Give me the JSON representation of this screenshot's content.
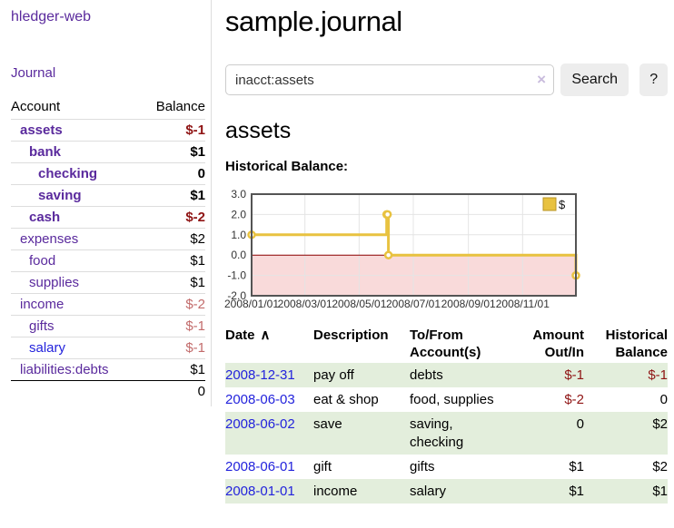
{
  "app_title": "hledger-web",
  "nav": {
    "journal": "Journal"
  },
  "sidebar": {
    "col_account": "Account",
    "col_balance": "Balance",
    "accounts": [
      {
        "name": "assets",
        "balance": "$-1",
        "level": 1,
        "bold": true,
        "balance_style": "neg",
        "link_style": "purple"
      },
      {
        "name": "bank",
        "balance": "$1",
        "level": 2,
        "bold": true,
        "balance_style": "pos",
        "link_style": "purple"
      },
      {
        "name": "checking",
        "balance": "0",
        "level": 3,
        "bold": true,
        "balance_style": "pos",
        "link_style": "purple"
      },
      {
        "name": "saving",
        "balance": "$1",
        "level": 3,
        "bold": true,
        "balance_style": "pos",
        "link_style": "purple"
      },
      {
        "name": "cash",
        "balance": "$-2",
        "level": 2,
        "bold": true,
        "balance_style": "neg",
        "link_style": "purple"
      },
      {
        "name": "expenses",
        "balance": "$2",
        "level": 1,
        "bold": false,
        "balance_style": "pos",
        "link_style": "purple"
      },
      {
        "name": "food",
        "balance": "$1",
        "level": 2,
        "bold": false,
        "balance_style": "pos",
        "link_style": "purple"
      },
      {
        "name": "supplies",
        "balance": "$1",
        "level": 2,
        "bold": false,
        "balance_style": "pos",
        "link_style": "purple"
      },
      {
        "name": "income",
        "balance": "$-2",
        "level": 1,
        "bold": false,
        "balance_style": "neg-muted",
        "link_style": "purple"
      },
      {
        "name": "gifts",
        "balance": "$-1",
        "level": 2,
        "bold": false,
        "balance_style": "neg-muted",
        "link_style": "purple"
      },
      {
        "name": "salary",
        "balance": "$-1",
        "level": 2,
        "bold": false,
        "balance_style": "neg-muted",
        "link_style": "blue"
      },
      {
        "name": "liabilities:debts",
        "balance": "$1",
        "level": 1,
        "bold": false,
        "balance_style": "pos",
        "link_style": "purple"
      }
    ],
    "total": "0"
  },
  "main": {
    "title": "sample.journal",
    "search": {
      "value": "inacct:assets",
      "clear_icon": "×",
      "button_label": "Search",
      "help_label": "?"
    },
    "account_heading": "assets",
    "chart_heading": "Historical Balance:"
  },
  "chart_data": {
    "type": "line",
    "title": "Historical Balance",
    "step": true,
    "series": [
      {
        "name": "$",
        "color": "#E8C240",
        "points": [
          [
            "2008-01-01",
            1
          ],
          [
            "2008-06-01",
            2
          ],
          [
            "2008-06-02",
            2
          ],
          [
            "2008-06-03",
            0
          ],
          [
            "2008-12-31",
            -1
          ]
        ]
      }
    ],
    "x_ticks": [
      "2008/01/01",
      "2008/03/01",
      "2008/05/01",
      "2008/07/01",
      "2008/09/01",
      "2008/11/01"
    ],
    "y_ticks": [
      "3.0",
      "2.0",
      "1.0",
      "0.0",
      "-1.0",
      "-2.0"
    ],
    "ylim": [
      -2,
      3
    ],
    "xlim": [
      "2008-01-01",
      "2008-12-31"
    ],
    "legend": {
      "label": "$",
      "position": "top-right"
    },
    "grid": true,
    "negative_region_fill": "#F9DADA",
    "zero_line_color": "#8B0000",
    "grid_line_color": "#E4E4E4",
    "border_color": "#545454"
  },
  "table": {
    "headers": {
      "date": "Date",
      "sort_indicator": "∧",
      "description": "Description",
      "tofrom_line1": "To/From",
      "tofrom_line2": "Account(s)",
      "amount_line1": "Amount",
      "amount_line2": "Out/In",
      "balance_line1": "Historical",
      "balance_line2": "Balance"
    },
    "rows": [
      {
        "date": "2008-12-31",
        "description": "pay off",
        "accounts": "debts",
        "amount": "$-1",
        "amount_style": "neg",
        "balance": "$-1",
        "balance_style": "neg"
      },
      {
        "date": "2008-06-03",
        "description": "eat & shop",
        "accounts": "food, supplies",
        "amount": "$-2",
        "amount_style": "neg",
        "balance": "0",
        "balance_style": "pos"
      },
      {
        "date": "2008-06-02",
        "description": "save",
        "accounts": "saving, checking",
        "amount": "0",
        "amount_style": "pos",
        "balance": "$2",
        "balance_style": "pos"
      },
      {
        "date": "2008-06-01",
        "description": "gift",
        "accounts": "gifts",
        "amount": "$1",
        "amount_style": "pos",
        "balance": "$2",
        "balance_style": "pos"
      },
      {
        "date": "2008-01-01",
        "description": "income",
        "accounts": "salary",
        "amount": "$1",
        "amount_style": "pos",
        "balance": "$1",
        "balance_style": "pos"
      }
    ]
  },
  "colors": {
    "link_purple": "#5A2A9D",
    "link_blue": "#2323DC",
    "negative_strong": "#8F1414",
    "negative_muted": "#C26B6B",
    "row_stripe": "#E3EEDC",
    "accent_gold": "#E8C240"
  }
}
